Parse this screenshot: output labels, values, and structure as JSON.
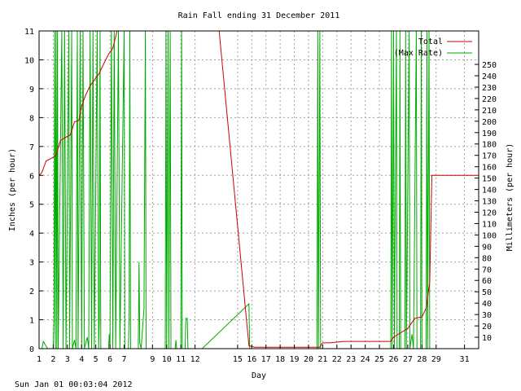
{
  "chart_data": {
    "type": "line",
    "title": "Rain Fall ending 31 December 2011",
    "xlabel": "Day",
    "ylabel_left": "Inches (per hour)",
    "ylabel_right": "Millimeters (per hour)",
    "footer": "Sun Jan 01 00:03:04 2012",
    "xlim": [
      1,
      32
    ],
    "ylim_left": [
      0,
      11
    ],
    "ylim_right_mm": [
      0,
      279.4
    ],
    "x_ticks": [
      1,
      2,
      3,
      4,
      5,
      6,
      7,
      9,
      10,
      11,
      12,
      15,
      16,
      17,
      18,
      19,
      20,
      21,
      22,
      23,
      24,
      25,
      26,
      27,
      28,
      29,
      31
    ],
    "y_ticks_left": [
      0,
      1,
      2,
      3,
      4,
      5,
      6,
      7,
      8,
      9,
      10,
      11
    ],
    "y_ticks_right": [
      10,
      20,
      30,
      40,
      50,
      60,
      70,
      80,
      90,
      100,
      110,
      120,
      130,
      140,
      150,
      160,
      170,
      180,
      190,
      200,
      210,
      220,
      230,
      240,
      250
    ],
    "grid": true,
    "legend_position": "top-right",
    "series": [
      {
        "name": "Total",
        "color": "#cc0000",
        "points": [
          [
            1.0,
            6.0
          ],
          [
            1.2,
            6.1
          ],
          [
            1.5,
            6.5
          ],
          [
            1.9,
            6.6
          ],
          [
            2.2,
            6.7
          ],
          [
            2.5,
            7.2
          ],
          [
            2.8,
            7.3
          ],
          [
            3.2,
            7.4
          ],
          [
            3.5,
            7.85
          ],
          [
            3.8,
            7.9
          ],
          [
            4.0,
            8.4
          ],
          [
            4.3,
            8.8
          ],
          [
            4.6,
            9.1
          ],
          [
            4.9,
            9.3
          ],
          [
            5.2,
            9.5
          ],
          [
            5.6,
            9.9
          ],
          [
            5.9,
            10.2
          ],
          [
            6.2,
            10.4
          ],
          [
            6.5,
            11.0
          ],
          [
            6.8,
            11.0
          ],
          [
            13.7,
            11.0
          ],
          [
            15.8,
            0.1
          ],
          [
            16.2,
            0.05
          ],
          [
            20.8,
            0.05
          ],
          [
            21.0,
            0.2
          ],
          [
            21.5,
            0.2
          ],
          [
            22.5,
            0.25
          ],
          [
            25.8,
            0.25
          ],
          [
            26.0,
            0.4
          ],
          [
            26.5,
            0.55
          ],
          [
            27.0,
            0.7
          ],
          [
            27.5,
            1.05
          ],
          [
            28.0,
            1.1
          ],
          [
            28.3,
            1.4
          ],
          [
            28.55,
            2.3
          ],
          [
            28.7,
            6.0
          ],
          [
            32.0,
            6.0
          ]
        ]
      },
      {
        "name": "(Max Rate)",
        "color": "#00aa00",
        "points": [
          [
            1.0,
            0.0
          ],
          [
            1.2,
            0.0
          ],
          [
            1.3,
            0.25
          ],
          [
            1.6,
            0.0
          ],
          [
            2.0,
            0.0
          ],
          [
            2.05,
            1.0
          ],
          [
            2.1,
            11.0
          ],
          [
            2.15,
            0.0
          ],
          [
            2.2,
            11.0
          ],
          [
            2.25,
            0.0
          ],
          [
            2.3,
            11.0
          ],
          [
            2.35,
            0.0
          ],
          [
            2.6,
            11.0
          ],
          [
            2.7,
            0.0
          ],
          [
            2.8,
            11.0
          ],
          [
            2.9,
            0.0
          ],
          [
            3.1,
            11.0
          ],
          [
            3.15,
            0.0
          ],
          [
            3.3,
            11.0
          ],
          [
            3.35,
            0.0
          ],
          [
            3.5,
            0.3
          ],
          [
            3.6,
            0.0
          ],
          [
            3.7,
            11.0
          ],
          [
            3.75,
            0.0
          ],
          [
            3.9,
            11.0
          ],
          [
            4.0,
            0.0
          ],
          [
            4.1,
            11.0
          ],
          [
            4.2,
            0.0
          ],
          [
            4.4,
            0.4
          ],
          [
            4.5,
            0.0
          ],
          [
            4.6,
            11.0
          ],
          [
            4.7,
            0.0
          ],
          [
            4.8,
            11.0
          ],
          [
            4.9,
            0.0
          ],
          [
            5.1,
            11.0
          ],
          [
            5.2,
            0.0
          ],
          [
            5.25,
            1.0
          ],
          [
            5.3,
            11.0
          ],
          [
            5.35,
            0.0
          ],
          [
            5.9,
            0.0
          ],
          [
            5.95,
            0.5
          ],
          [
            6.0,
            0.0
          ],
          [
            6.1,
            11.0
          ],
          [
            6.2,
            0.0
          ],
          [
            6.3,
            11.0
          ],
          [
            6.4,
            0.0
          ],
          [
            6.6,
            11.0
          ],
          [
            6.7,
            0.0
          ],
          [
            7.0,
            11.0
          ],
          [
            7.05,
            0.0
          ],
          [
            7.3,
            0.0
          ],
          [
            7.35,
            1.0
          ],
          [
            7.4,
            11.0
          ],
          [
            7.45,
            0.0
          ],
          [
            8.0,
            0.0
          ],
          [
            8.05,
            3.0
          ],
          [
            8.1,
            0.2
          ],
          [
            8.2,
            0.0
          ],
          [
            8.4,
            1.4
          ],
          [
            8.5,
            11.0
          ],
          [
            8.55,
            0.0
          ],
          [
            9.9,
            0.0
          ],
          [
            9.95,
            11.0
          ],
          [
            10.0,
            0.0
          ],
          [
            10.1,
            11.0
          ],
          [
            10.15,
            0.0
          ],
          [
            10.25,
            11.0
          ],
          [
            10.3,
            0.0
          ],
          [
            10.6,
            0.0
          ],
          [
            10.65,
            0.3
          ],
          [
            10.7,
            0.0
          ],
          [
            11.0,
            0.0
          ],
          [
            11.05,
            11.0
          ],
          [
            11.1,
            0.0
          ],
          [
            11.3,
            0.0
          ],
          [
            11.35,
            1.05
          ],
          [
            11.45,
            1.05
          ],
          [
            11.5,
            0.0
          ],
          [
            12.5,
            0.0
          ],
          [
            15.8,
            1.55
          ],
          [
            15.85,
            0.0
          ],
          [
            20.6,
            0.0
          ],
          [
            20.65,
            11.0
          ],
          [
            20.7,
            0.0
          ],
          [
            20.8,
            11.0
          ],
          [
            20.85,
            0.0
          ],
          [
            25.8,
            0.0
          ],
          [
            25.85,
            11.0
          ],
          [
            25.9,
            0.0
          ],
          [
            26.0,
            11.0
          ],
          [
            26.05,
            0.0
          ],
          [
            26.2,
            11.0
          ],
          [
            26.25,
            0.0
          ],
          [
            26.4,
            0.0
          ],
          [
            26.45,
            11.0
          ],
          [
            26.5,
            0.0
          ],
          [
            26.8,
            0.0
          ],
          [
            26.85,
            11.0
          ],
          [
            26.9,
            0.0
          ],
          [
            27.1,
            11.0
          ],
          [
            27.15,
            0.0
          ],
          [
            27.3,
            0.5
          ],
          [
            27.4,
            0.0
          ],
          [
            27.6,
            11.0
          ],
          [
            27.65,
            0.0
          ],
          [
            27.9,
            0.0
          ],
          [
            27.95,
            11.0
          ],
          [
            28.0,
            0.0
          ],
          [
            28.3,
            0.0
          ],
          [
            28.35,
            11.0
          ],
          [
            28.4,
            0.0
          ],
          [
            28.5,
            11.0
          ],
          [
            28.55,
            0.0
          ],
          [
            28.7,
            0.0
          ]
        ]
      }
    ]
  }
}
